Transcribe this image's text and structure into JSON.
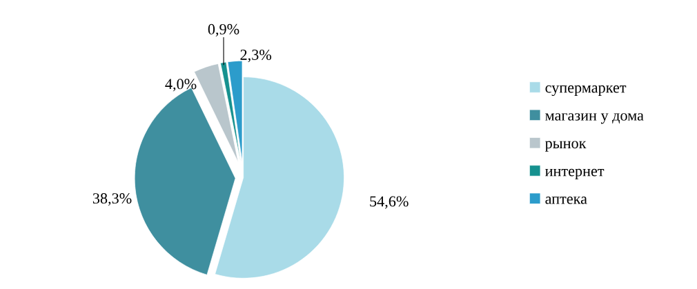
{
  "chart_data": {
    "type": "pie",
    "categories": [
      "супермаркет",
      "магазин у дома",
      "рынок",
      "интернет",
      "аптека"
    ],
    "values": [
      54.6,
      38.3,
      4.0,
      0.9,
      2.3
    ],
    "value_labels": [
      "54,6%",
      "38,3%",
      "4,0%",
      "0,9%",
      "2,3%"
    ],
    "colors": [
      "#a9dbe8",
      "#3f8f9f",
      "#b9c6cc",
      "#16918f",
      "#2c9ccb"
    ],
    "legend": "right"
  }
}
